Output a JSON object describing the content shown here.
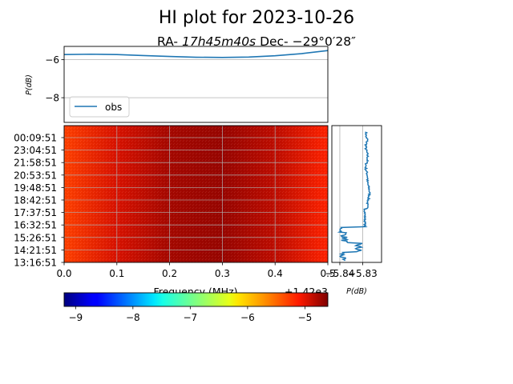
{
  "title": "HI plot for 2023-10-26",
  "subtitle": {
    "ra_prefix": "RA- ",
    "ra_value": "17h45m40s",
    "dec_prefix": " Dec- ",
    "dec_value": "−29°0′28″"
  },
  "colors": {
    "line": "#1f77b4",
    "grid": "#b0b0b0"
  },
  "chart_data": [
    {
      "id": "spectrum",
      "type": "line",
      "ylabel": "P(dB)",
      "ylim": [
        -9.3,
        -5.3
      ],
      "xlim": [
        0,
        0.5
      ],
      "yticks": [
        -6,
        -8
      ],
      "ytick_labels": [
        "−6",
        "−8"
      ],
      "grid": "y",
      "legend": {
        "label": "obs",
        "placement": "lower-left"
      },
      "x": [
        0,
        0.05,
        0.1,
        0.15,
        0.2,
        0.25,
        0.3,
        0.35,
        0.4,
        0.45,
        0.5
      ],
      "y": [
        -5.73,
        -5.71,
        -5.73,
        -5.78,
        -5.83,
        -5.87,
        -5.88,
        -5.86,
        -5.79,
        -5.68,
        -5.52
      ]
    },
    {
      "id": "waterfall",
      "type": "heatmap",
      "xlabel": "Frequency (MHz)",
      "x_offset_label": "+1.42e3",
      "xlim": [
        0,
        0.5
      ],
      "xticks": [
        0,
        0.1,
        0.2,
        0.3,
        0.4,
        0.5
      ],
      "xtick_labels": [
        "0.0",
        "0.1",
        "0.2",
        "0.3",
        "0.4",
        "0.5"
      ],
      "time_labels": [
        "00:09:51",
        "23:04:51",
        "21:58:51",
        "20:53:51",
        "19:48:51",
        "18:42:51",
        "17:37:51",
        "16:32:51",
        "15:26:51",
        "14:21:51",
        "13:16:51"
      ],
      "colormap": "jet",
      "clim": [
        -9.2,
        -4.6
      ],
      "grid": true,
      "profile_x": [
        0,
        0.1,
        0.2,
        0.3,
        0.4,
        0.5
      ],
      "profile_y": [
        -5.3,
        -4.95,
        -4.75,
        -4.7,
        -4.85,
        -5.15
      ]
    },
    {
      "id": "time-profile",
      "type": "line",
      "xlabel": "P(dB)",
      "xtick_labels": [
        "−5.84",
        "−5.83"
      ],
      "xticks": [
        -5.84,
        -5.83
      ],
      "xlim": [
        -5.8435,
        -5.8217
      ],
      "ylim": [
        0,
        1
      ],
      "grid": "x"
    },
    {
      "id": "colorbar",
      "type": "heatmap",
      "colormap": "jet",
      "range": [
        -9.2,
        -4.6
      ],
      "ticks": [
        -9,
        -8,
        -7,
        -6,
        -5
      ],
      "tick_labels": [
        "−9",
        "−8",
        "−7",
        "−6",
        "−5"
      ]
    }
  ]
}
